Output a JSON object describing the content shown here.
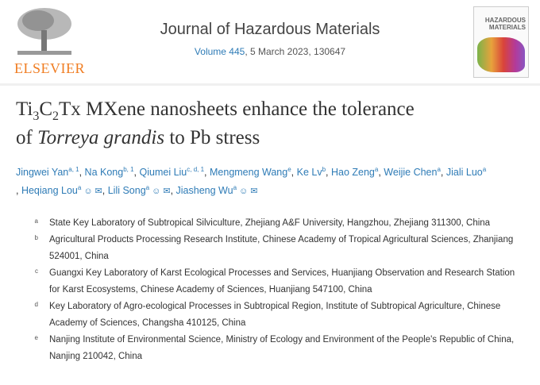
{
  "publisher": {
    "name": "ELSEVIER"
  },
  "journal": {
    "title": "Journal of Hazardous Materials",
    "volume_link": "Volume 445",
    "issue_info": ", 5 March 2023, 130647",
    "cover_title": "HAZARDOUS MATERIALS"
  },
  "article": {
    "title_part1": "Ti",
    "title_sub1": "3",
    "title_part2": "C",
    "title_sub2": "2",
    "title_part3": "Tx MXene nanosheets enhance the tolerance",
    "title_line2_pre": "of ",
    "title_italic": "Torreya grandis",
    "title_line2_post": " to Pb stress"
  },
  "authors": [
    {
      "name": "Jingwei Yan",
      "sup": "a, 1"
    },
    {
      "name": "Na Kong",
      "sup": "b, 1"
    },
    {
      "name": "Qiumei Liu",
      "sup": "c, d, 1"
    },
    {
      "name": "Mengmeng Wang",
      "sup": "e"
    },
    {
      "name": "Ke Lv",
      "sup": "b"
    },
    {
      "name": "Hao Zeng",
      "sup": "a"
    },
    {
      "name": "Weijie Chen",
      "sup": "a"
    },
    {
      "name": "Jiali Luo",
      "sup": "a"
    },
    {
      "name": "Heqiang Lou",
      "sup": "a",
      "icons": true
    },
    {
      "name": "Lili Song",
      "sup": "a",
      "icons": true
    },
    {
      "name": "Jiasheng Wu",
      "sup": "a",
      "icons": true
    }
  ],
  "affiliations": [
    {
      "label": "a",
      "text": "State Key Laboratory of Subtropical Silviculture, Zhejiang A&F University, Hangzhou, Zhejiang 311300, China"
    },
    {
      "label": "b",
      "text": "Agricultural Products Processing Research Institute, Chinese Academy of Tropical Agricultural Sciences, Zhanjiang 524001, China"
    },
    {
      "label": "c",
      "text": "Guangxi Key Laboratory of Karst Ecological Processes and Services, Huanjiang Observation and Research Station for Karst Ecosystems, Chinese Academy of Sciences, Huanjiang 547100, China"
    },
    {
      "label": "d",
      "text": "Key Laboratory of Agro-ecological Processes in Subtropical Region, Institute of Subtropical Agriculture, Chinese Academy of Sciences, Changsha 410125, China"
    },
    {
      "label": "e",
      "text": "Nanjing Institute of Environmental Science, Ministry of Ecology and Environment of the People's Republic of China, Nanjing 210042, China"
    }
  ],
  "colors": {
    "link": "#2e7bb6",
    "elsevier": "#f07d22"
  }
}
